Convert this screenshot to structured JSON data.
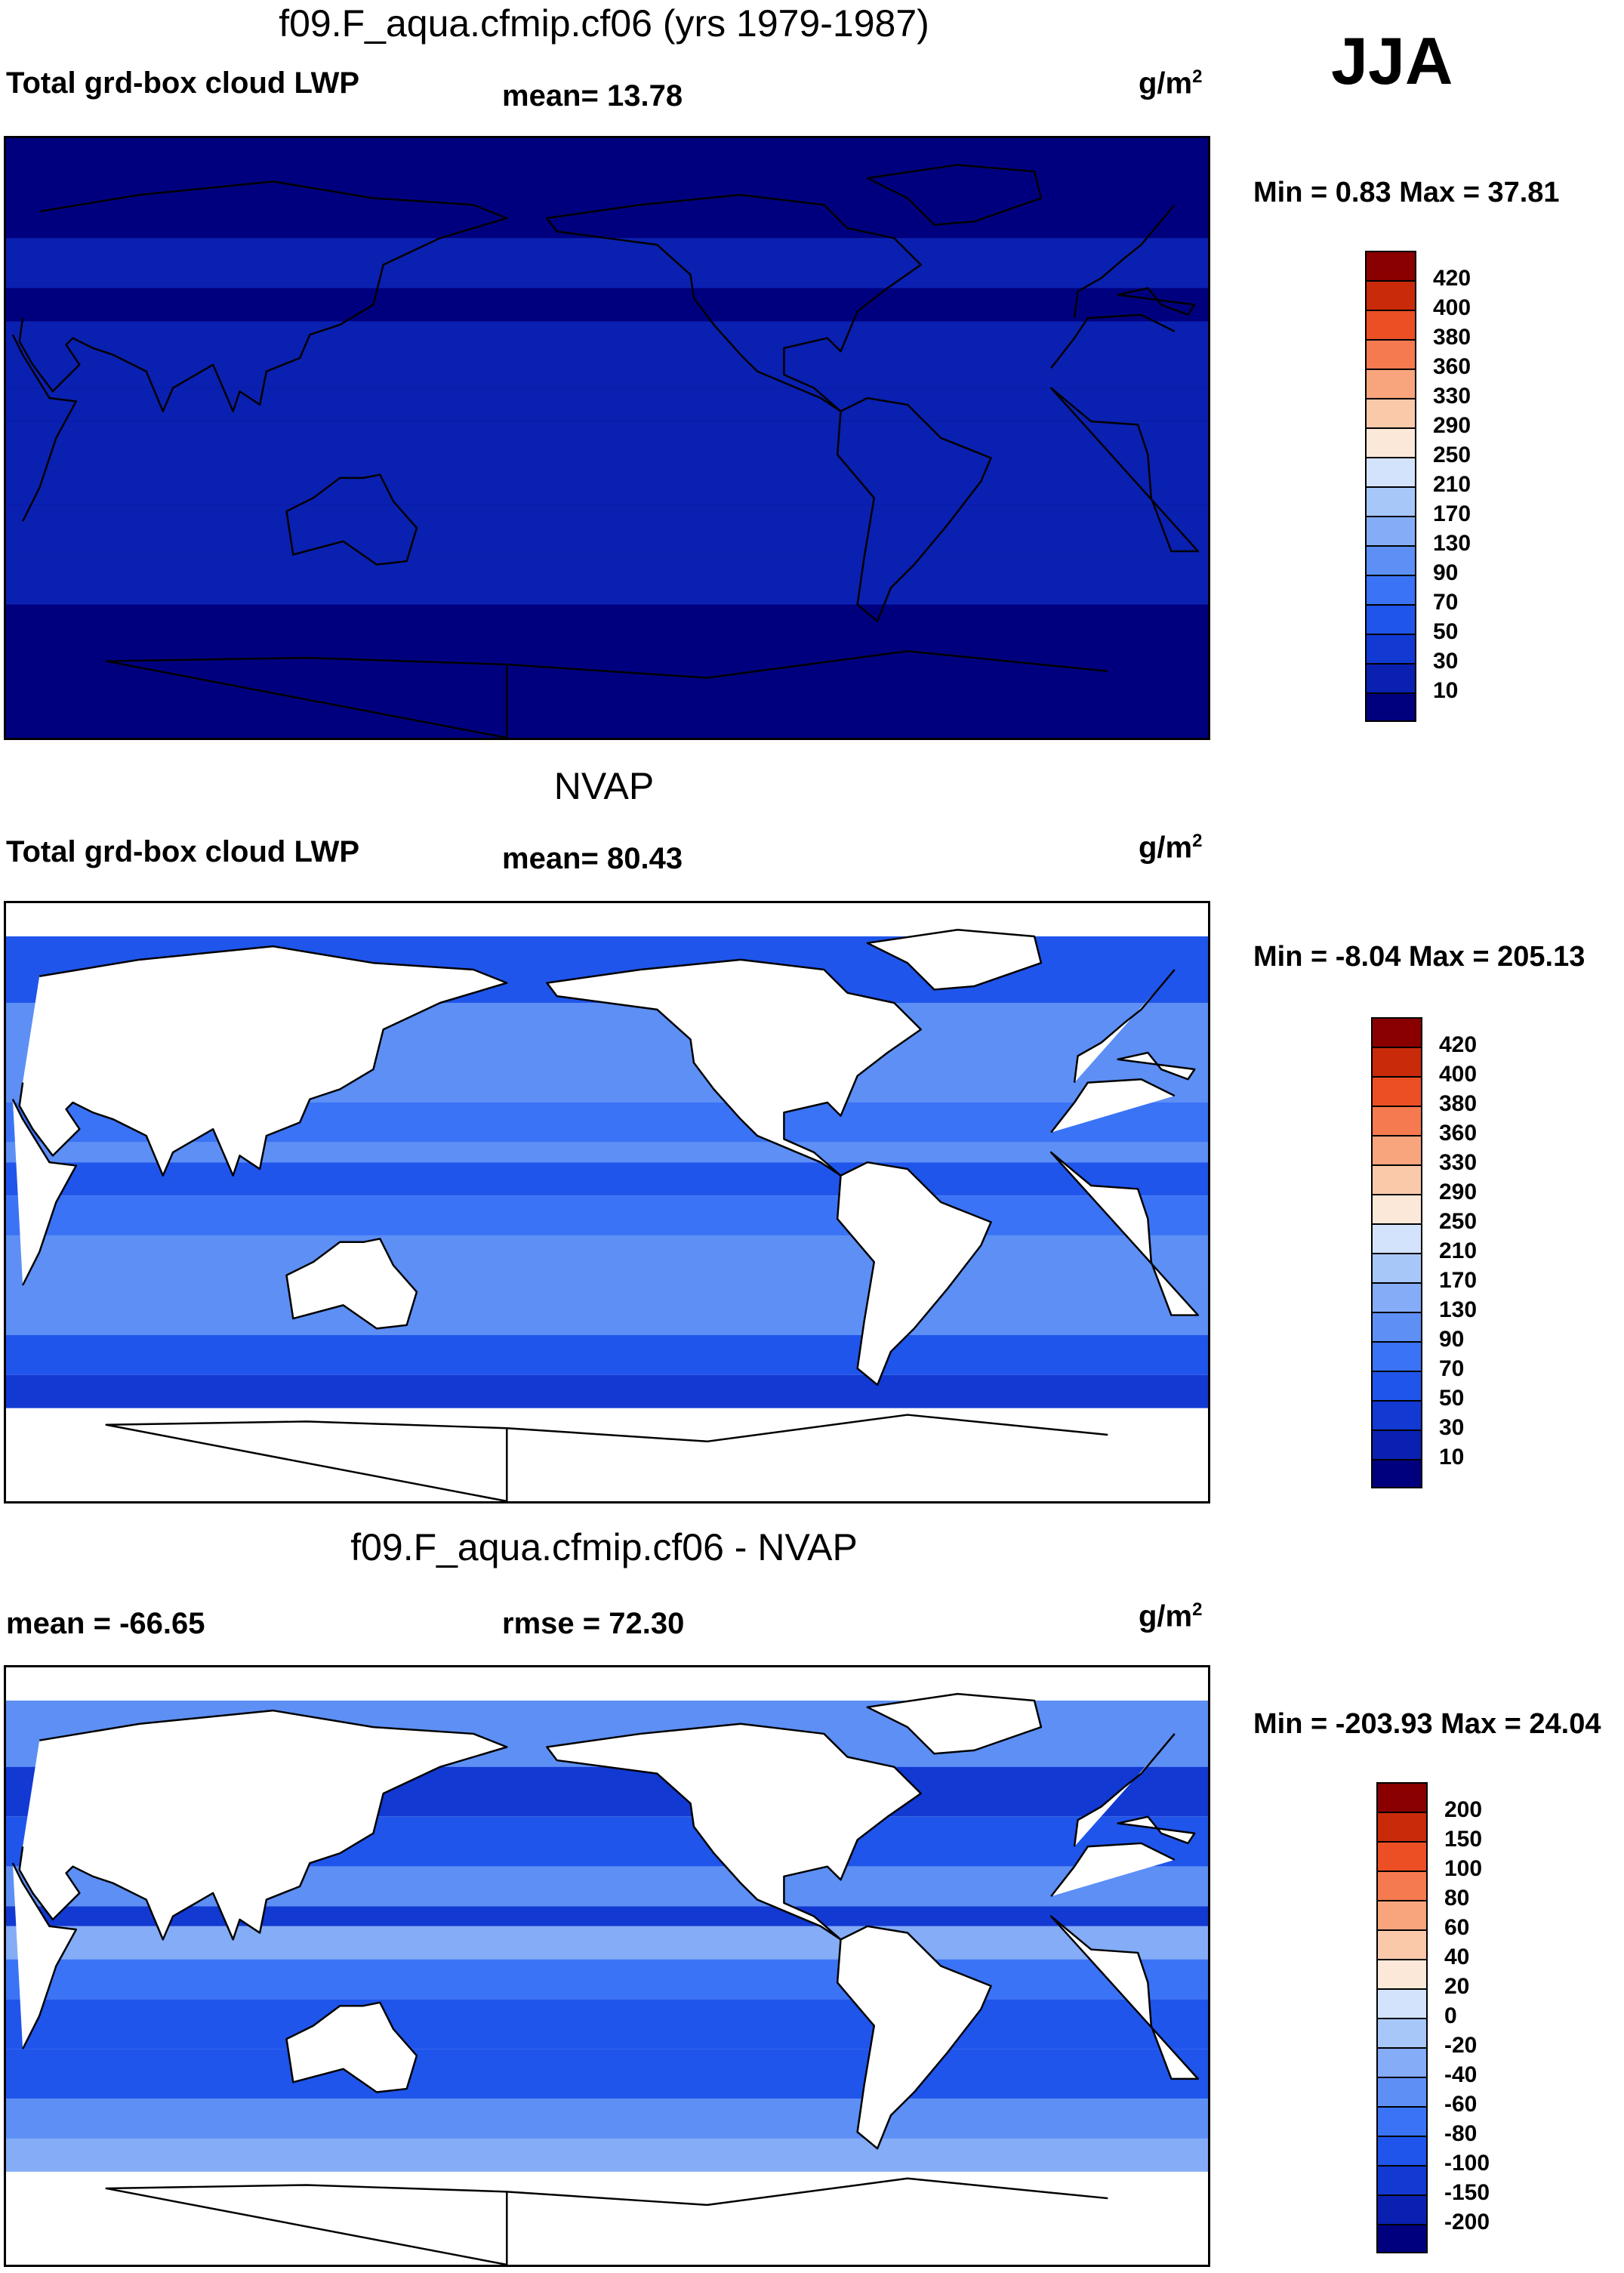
{
  "season": "JJA",
  "units_base": "g/m",
  "units_exp": "2",
  "land_color": "#ffffff",
  "coast_color": "#000000",
  "palette_lwp": [
    "#00007f",
    "#0a20b0",
    "#1239d2",
    "#1f55eb",
    "#3a73f5",
    "#5d8ff5",
    "#84acf7",
    "#a7c7f9",
    "#d2e3fb",
    "#fbe8d8",
    "#f9c9aa",
    "#f8a47d",
    "#f57a4f",
    "#ec4f24",
    "#c92a0a",
    "#8a0000"
  ],
  "palette_diff": [
    "#00007f",
    "#0a20b0",
    "#1239d2",
    "#1f55eb",
    "#3a73f5",
    "#5d8ff5",
    "#84acf7",
    "#a7c7f9",
    "#d2e3fb",
    "#fbe8d8",
    "#f9c9aa",
    "#f8a47d",
    "#f57a4f",
    "#ec4f24",
    "#c92a0a",
    "#8a0000"
  ],
  "panels": [
    {
      "id": "model",
      "title": "f09.F_aqua.cfmip.cf06 (yrs 1979-1987)",
      "left_label": "Total grd-box cloud LWP",
      "center_label": "mean=  13.78",
      "minmax": "Min =   0.83 Max =  37.81",
      "colorbar_labels": [
        "420",
        "400",
        "380",
        "360",
        "330",
        "290",
        "250",
        "210",
        "170",
        "130",
        "90",
        "70",
        "50",
        "30",
        "10"
      ]
    },
    {
      "id": "obs",
      "title": "NVAP",
      "left_label": "Total grd-box cloud LWP",
      "center_label": "mean=  80.43",
      "minmax": "Min =  -8.04 Max = 205.13",
      "colorbar_labels": [
        "420",
        "400",
        "380",
        "360",
        "330",
        "290",
        "250",
        "210",
        "170",
        "130",
        "90",
        "70",
        "50",
        "30",
        "10"
      ]
    },
    {
      "id": "diff",
      "title": "f09.F_aqua.cfmip.cf06 - NVAP",
      "left_label": "mean = -66.65",
      "center_label": "rmse =  72.30",
      "minmax": "Min = -203.93 Max =  24.04",
      "colorbar_labels": [
        "200",
        "150",
        "100",
        "80",
        "60",
        "40",
        "20",
        "0",
        "-20",
        "-40",
        "-60",
        "-80",
        "-100",
        "-150",
        "-200"
      ]
    }
  ],
  "chart_data": [
    {
      "type": "heatmap",
      "title": "f09.F_aqua.cfmip.cf06 (yrs 1979-1987)",
      "variable": "Total grd-box cloud LWP",
      "units": "g/m2",
      "season": "JJA",
      "mean": 13.78,
      "min": 0.83,
      "max": 37.81,
      "levels": [
        10,
        30,
        50,
        70,
        90,
        130,
        170,
        210,
        250,
        290,
        330,
        360,
        380,
        400,
        420
      ],
      "zonal_bands": [
        {
          "lat": [
            60,
            90
          ],
          "value": 5
        },
        {
          "lat": [
            45,
            60
          ],
          "value": 20
        },
        {
          "lat": [
            35,
            45
          ],
          "value": 8
        },
        {
          "lat": [
            15,
            35
          ],
          "value": 25
        },
        {
          "lat": [
            5,
            15
          ],
          "value": 12
        },
        {
          "lat": [
            -10,
            5
          ],
          "value": 28
        },
        {
          "lat": [
            -20,
            -10
          ],
          "value": 12
        },
        {
          "lat": [
            -35,
            -20
          ],
          "value": 25
        },
        {
          "lat": [
            -50,
            -35
          ],
          "value": 12
        },
        {
          "lat": [
            -90,
            -50
          ],
          "value": 5
        }
      ]
    },
    {
      "type": "heatmap",
      "title": "NVAP",
      "variable": "Total grd-box cloud LWP",
      "units": "g/m2",
      "season": "JJA",
      "mean": 80.43,
      "min": -8.04,
      "max": 205.13,
      "levels": [
        10,
        30,
        50,
        70,
        90,
        130,
        170,
        210,
        250,
        290,
        330,
        360,
        380,
        400,
        420
      ],
      "land_masked": true,
      "zonal_bands": [
        {
          "lat": [
            60,
            80
          ],
          "value": 55
        },
        {
          "lat": [
            45,
            60
          ],
          "value": 115
        },
        {
          "lat": [
            30,
            45
          ],
          "value": 95
        },
        {
          "lat": [
            18,
            30
          ],
          "value": 75
        },
        {
          "lat": [
            12,
            18
          ],
          "value": 110
        },
        {
          "lat": [
            2,
            12
          ],
          "value": 55
        },
        {
          "lat": [
            -10,
            2
          ],
          "value": 85
        },
        {
          "lat": [
            -25,
            -10
          ],
          "value": 105
        },
        {
          "lat": [
            -40,
            -25
          ],
          "value": 95
        },
        {
          "lat": [
            -52,
            -40
          ],
          "value": 60
        },
        {
          "lat": [
            -62,
            -52
          ],
          "value": 40
        }
      ]
    },
    {
      "type": "heatmap",
      "title": "f09.F_aqua.cfmip.cf06 - NVAP",
      "units": "g/m2",
      "season": "JJA",
      "mean": -66.65,
      "rmse": 72.3,
      "min": -203.93,
      "max": 24.04,
      "levels": [
        -200,
        -150,
        -100,
        -80,
        -60,
        -40,
        -20,
        0,
        20,
        40,
        60,
        80,
        100,
        150,
        200
      ],
      "land_masked": true,
      "zonal_bands": [
        {
          "lat": [
            60,
            80
          ],
          "value": -50
        },
        {
          "lat": [
            45,
            60
          ],
          "value": -110
        },
        {
          "lat": [
            30,
            45
          ],
          "value": -90
        },
        {
          "lat": [
            18,
            30
          ],
          "value": -60
        },
        {
          "lat": [
            12,
            18
          ],
          "value": -105
        },
        {
          "lat": [
            2,
            12
          ],
          "value": -40
        },
        {
          "lat": [
            -10,
            2
          ],
          "value": -65
        },
        {
          "lat": [
            -25,
            -10
          ],
          "value": -95
        },
        {
          "lat": [
            -40,
            -25
          ],
          "value": -85
        },
        {
          "lat": [
            -52,
            -40
          ],
          "value": -60
        },
        {
          "lat": [
            -62,
            -52
          ],
          "value": -35
        }
      ]
    }
  ]
}
